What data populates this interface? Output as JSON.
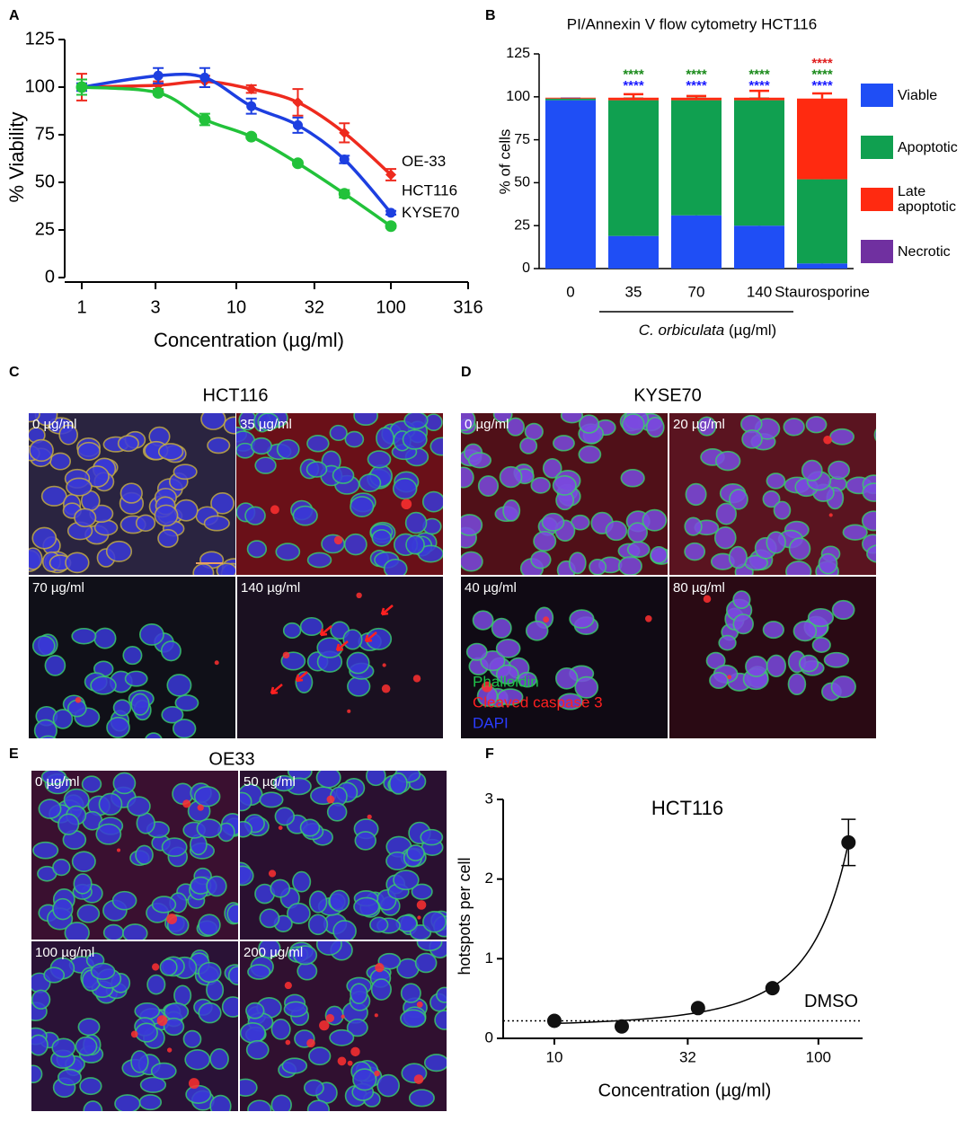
{
  "panel_labels": [
    "A",
    "B",
    "C",
    "D",
    "E",
    "F"
  ],
  "chart_data": [
    {
      "type": "line",
      "xlabel": "Concentration (µg/ml)",
      "ylabel": "% Viability",
      "log_x": true,
      "xlim": [
        1,
        316
      ],
      "xticks": [
        1,
        3,
        10,
        32,
        100,
        316
      ],
      "ylim": [
        0,
        125
      ],
      "yticks": [
        0,
        25,
        50,
        75,
        100,
        125
      ],
      "x": [
        1,
        3.125,
        6.25,
        12.5,
        25,
        50,
        100
      ],
      "series": [
        {
          "name": "OE-33",
          "color": "#ee2a1e",
          "marker": "diamond",
          "values": [
            100,
            101,
            103,
            99,
            92,
            76,
            54
          ],
          "errors": [
            7,
            2,
            3,
            2,
            7,
            5,
            3
          ]
        },
        {
          "name": "HCT116",
          "color": "#1d3fe0",
          "marker": "circle",
          "values": [
            100,
            106,
            105,
            90,
            80,
            62,
            34
          ],
          "errors": [
            2,
            4,
            5,
            4,
            4,
            2,
            1
          ]
        },
        {
          "name": "KYSE70",
          "color": "#22c23a",
          "marker": "circle",
          "values": [
            100,
            97,
            83,
            74,
            60,
            44,
            27
          ],
          "errors": [
            4,
            1,
            3,
            1,
            1,
            2,
            1
          ]
        }
      ]
    },
    {
      "type": "stacked_bar",
      "title": "PI/Annexin V flow cytometry HCT116",
      "ylabel": "% of cells",
      "xlabel": [
        "C. orbiculata",
        "(µg/ml)"
      ],
      "categories": [
        "0",
        "35",
        "70",
        "140",
        "Staurosporine"
      ],
      "ylim": [
        0,
        125
      ],
      "yticks": [
        0,
        25,
        50,
        75,
        100,
        125
      ],
      "series": [
        {
          "name": "Viable",
          "color": "#1f4ef5",
          "values": [
            98,
            19,
            31,
            25,
            3
          ],
          "errors": [
            1,
            4,
            3,
            7,
            1
          ]
        },
        {
          "name": "Apoptotic",
          "color": "#10a050",
          "values": [
            1,
            79,
            67,
            73,
            49
          ],
          "errors": [
            0,
            1,
            1,
            1,
            3
          ]
        },
        {
          "name": "Late apoptotic",
          "color": "#ff2a10",
          "values": [
            0.5,
            1.5,
            1.5,
            1.5,
            47
          ],
          "errors": [
            0,
            2,
            1,
            4,
            3
          ]
        },
        {
          "name": "Necrotic",
          "color": "#7030a0",
          "values": [
            0,
            0,
            0,
            0,
            0
          ],
          "errors": [
            0,
            0,
            0,
            0,
            0
          ]
        }
      ],
      "significance": [
        [],
        [
          {
            "text": "****",
            "color": "#1a8a1a"
          },
          {
            "text": "****",
            "color": "#1a1aff"
          }
        ],
        [
          {
            "text": "****",
            "color": "#1a8a1a"
          },
          {
            "text": "****",
            "color": "#1a1aff"
          }
        ],
        [
          {
            "text": "****",
            "color": "#1a8a1a"
          },
          {
            "text": "****",
            "color": "#1a1aff"
          }
        ],
        [
          {
            "text": "****",
            "color": "#e02020"
          },
          {
            "text": "****",
            "color": "#1a8a1a"
          },
          {
            "text": "****",
            "color": "#1a1aff"
          }
        ]
      ]
    },
    {
      "type": "scatter",
      "title": "HCT116",
      "xlabel": "Concentration (µg/ml)",
      "ylabel": "hotspots per cell",
      "log_x": true,
      "xlim": [
        6.4,
        147
      ],
      "xticks": [
        10,
        32,
        100
      ],
      "ylim": [
        0,
        3
      ],
      "yticks": [
        0,
        1,
        2,
        3
      ],
      "x": [
        10,
        18,
        35,
        67,
        130
      ],
      "values": [
        0.22,
        0.15,
        0.38,
        0.63,
        2.46
      ],
      "errors": [
        0,
        0,
        0,
        0,
        0.29
      ],
      "color": "#111111",
      "reference_line": {
        "label": "DMSO",
        "value": 0.22
      }
    }
  ],
  "images": [
    {
      "title": "HCT116",
      "labels": [
        "0 µg/ml",
        "35 µg/ml",
        "70 µg/ml",
        "140 µg/ml"
      ]
    },
    {
      "title": "KYSE70",
      "labels": [
        "0 µg/ml",
        "20 µg/ml",
        "40 µg/ml",
        "80 µg/ml"
      ],
      "legend": [
        {
          "text": "Phalloidin",
          "color": "#1fc24a"
        },
        {
          "text": "Cleaved caspase 3",
          "color": "#ff2020"
        },
        {
          "text": "DAPI",
          "color": "#2a3cff"
        }
      ]
    },
    {
      "title": "OE33",
      "labels": [
        "0 µg/ml",
        "50 µg/ml",
        "100 µg/ml",
        "200 µg/ml"
      ]
    }
  ]
}
